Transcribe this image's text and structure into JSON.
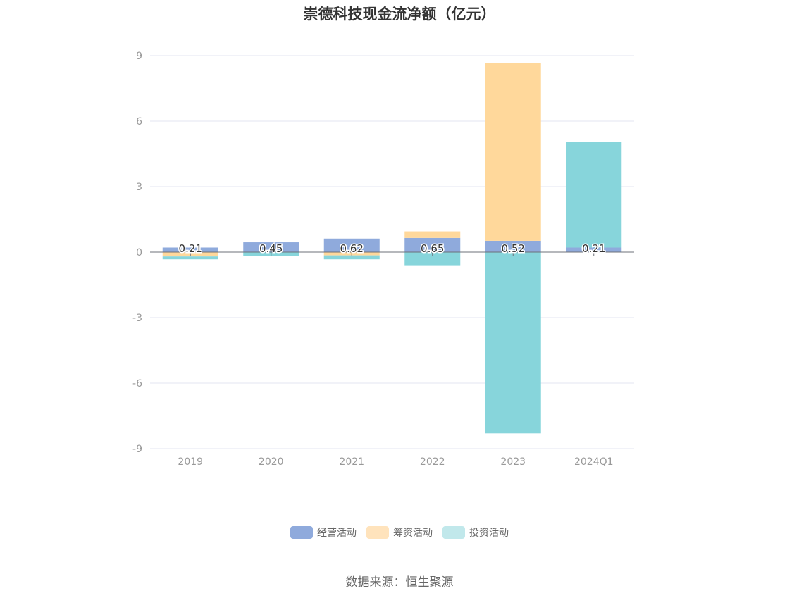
{
  "chart_data": {
    "type": "bar",
    "stacked": true,
    "title": "崇德科技现金流净额（亿元）",
    "categories": [
      "2019",
      "2020",
      "2021",
      "2022",
      "2023",
      "2024Q1"
    ],
    "series": [
      {
        "name": "经营活动",
        "color": "#8faadc",
        "values": [
          0.21,
          0.45,
          0.62,
          0.65,
          0.52,
          0.21
        ]
      },
      {
        "name": "筹资活动",
        "color": "#ffd89b",
        "values": [
          -0.2,
          0.0,
          -0.15,
          0.3,
          8.15,
          0.0
        ]
      },
      {
        "name": "投资活动",
        "color": "#87d5db",
        "values": [
          -0.13,
          -0.18,
          -0.18,
          -0.6,
          -8.3,
          4.85
        ]
      }
    ],
    "data_labels": [
      "0.21",
      "0.45",
      "0.62",
      "0.65",
      "0.52",
      "0.21"
    ],
    "yticks": [
      "9",
      "6",
      "3",
      "0",
      "-3",
      "-6",
      "-9"
    ],
    "ylim": [
      -9,
      9
    ],
    "grid": true,
    "legend_position": "bottom"
  },
  "legend": {
    "items": [
      {
        "label": "经营活动",
        "color": "#8faadc"
      },
      {
        "label": "筹资活动",
        "color": "#ffe3bc"
      },
      {
        "label": "投资活动",
        "color": "#c1e8eb"
      }
    ]
  },
  "source": "数据来源：恒生聚源"
}
